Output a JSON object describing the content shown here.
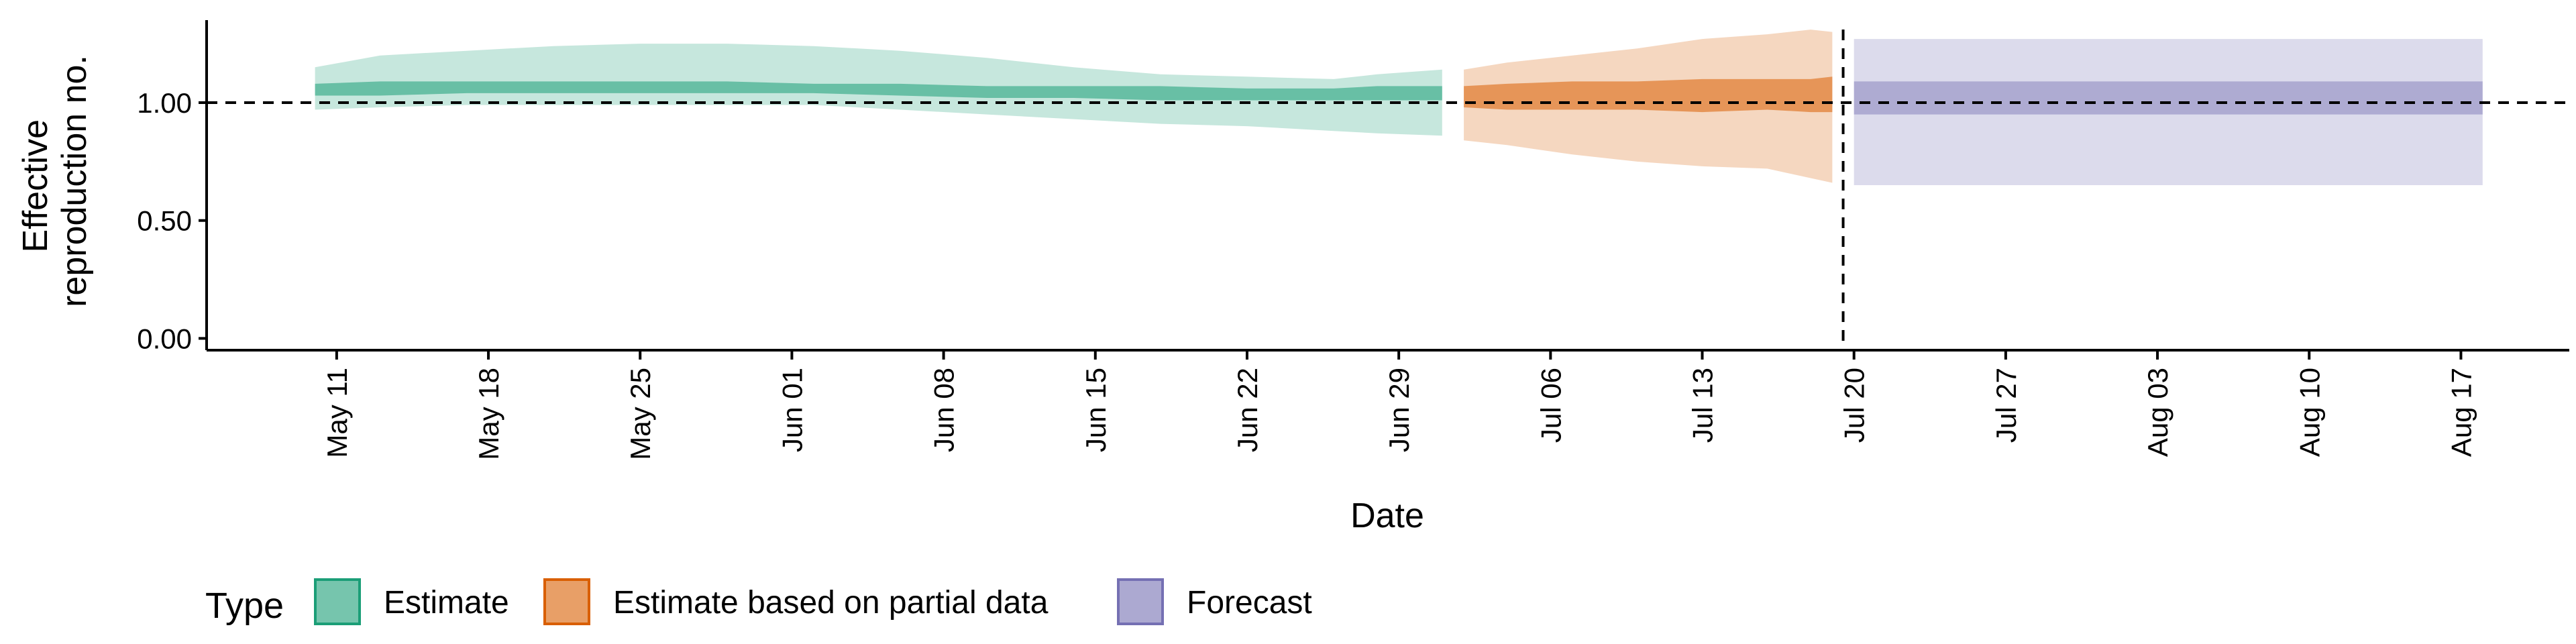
{
  "chart_data": {
    "type": "area",
    "xlabel": "Date",
    "ylabel_lines": [
      "Effective",
      "reproduction no."
    ],
    "y_ticks": [
      0,
      0.5,
      1.0
    ],
    "y_tick_labels": [
      "0.00",
      "0.50",
      "1.00"
    ],
    "ylim": [
      -0.05,
      1.35
    ],
    "xlim": [
      "2020-05-05",
      "2020-08-22"
    ],
    "x_ticks": [
      "2020-05-11",
      "2020-05-18",
      "2020-05-25",
      "2020-06-01",
      "2020-06-08",
      "2020-06-15",
      "2020-06-22",
      "2020-06-29",
      "2020-07-06",
      "2020-07-13",
      "2020-07-20",
      "2020-07-27",
      "2020-08-03",
      "2020-08-10",
      "2020-08-17"
    ],
    "x_tick_labels": [
      "May 11",
      "May 18",
      "May 25",
      "Jun 01",
      "Jun 08",
      "Jun 15",
      "Jun 22",
      "Jun 29",
      "Jul 06",
      "Jul 13",
      "Jul 20",
      "Jul 27",
      "Aug 03",
      "Aug 10",
      "Aug 17"
    ],
    "reference_hline": 1.0,
    "reference_vline": "2020-07-19",
    "legend": {
      "title": "Type",
      "position": "bottom-left"
    },
    "series": [
      {
        "name": "Estimate",
        "color": "#1B9E77",
        "x": [
          "2020-05-10",
          "2020-05-13",
          "2020-05-17",
          "2020-05-21",
          "2020-05-25",
          "2020-05-29",
          "2020-06-02",
          "2020-06-06",
          "2020-06-10",
          "2020-06-14",
          "2020-06-18",
          "2020-06-22",
          "2020-06-26",
          "2020-06-28",
          "2020-07-01"
        ],
        "lower90": [
          0.97,
          0.98,
          0.99,
          0.99,
          0.99,
          0.99,
          0.99,
          0.97,
          0.95,
          0.93,
          0.91,
          0.9,
          0.88,
          0.87,
          0.86
        ],
        "lower50": [
          1.03,
          1.03,
          1.04,
          1.04,
          1.04,
          1.04,
          1.04,
          1.03,
          1.02,
          1.02,
          1.01,
          1.01,
          1.01,
          1.01,
          1.01
        ],
        "upper50": [
          1.08,
          1.09,
          1.09,
          1.09,
          1.09,
          1.09,
          1.08,
          1.08,
          1.07,
          1.07,
          1.07,
          1.06,
          1.06,
          1.07,
          1.07
        ],
        "upper90": [
          1.15,
          1.2,
          1.22,
          1.24,
          1.25,
          1.25,
          1.24,
          1.22,
          1.19,
          1.15,
          1.12,
          1.11,
          1.1,
          1.12,
          1.14
        ]
      },
      {
        "name": "Estimate based on partial data",
        "color": "#D95F02",
        "x": [
          "2020-07-02",
          "2020-07-04",
          "2020-07-07",
          "2020-07-10",
          "2020-07-13",
          "2020-07-16",
          "2020-07-18",
          "2020-07-19"
        ],
        "lower90": [
          0.84,
          0.82,
          0.78,
          0.75,
          0.73,
          0.72,
          0.68,
          0.66
        ],
        "lower50": [
          0.98,
          0.97,
          0.97,
          0.97,
          0.96,
          0.97,
          0.96,
          0.96
        ],
        "upper50": [
          1.07,
          1.08,
          1.09,
          1.09,
          1.1,
          1.1,
          1.1,
          1.11
        ],
        "upper90": [
          1.14,
          1.17,
          1.2,
          1.23,
          1.27,
          1.29,
          1.31,
          1.3
        ]
      },
      {
        "name": "Forecast",
        "color": "#7570B3",
        "x": [
          "2020-07-20",
          "2020-08-18"
        ],
        "lower90": [
          0.65,
          0.65
        ],
        "lower50": [
          0.95,
          0.95
        ],
        "upper50": [
          1.09,
          1.09
        ],
        "upper90": [
          1.27,
          1.27
        ]
      }
    ]
  }
}
